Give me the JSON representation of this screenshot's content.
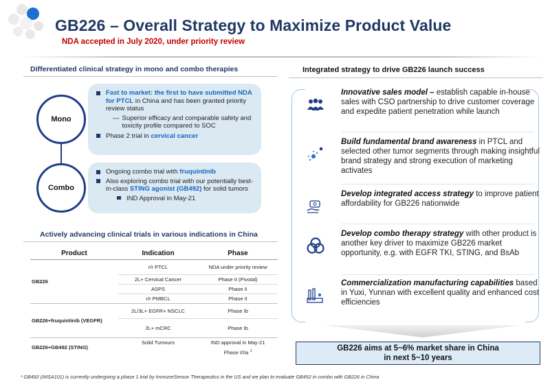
{
  "header": {
    "title": "GB226 – Overall Strategy to Maximize Product Value",
    "subtitle": "NDA accepted in July 2020, under priority review"
  },
  "left": {
    "heading": "Differentiated clinical strategy in mono and combo therapies",
    "mono": {
      "label": "Mono",
      "b1_pre": "Fast to market: the first to have submitted NDA for PTCL",
      "b1_post": " in China and has been granted priority review status",
      "b1_dash": "Superior efficacy and comparable safety and toxicity profile compared to SOC",
      "b2_pre": "Phase 2 trial in ",
      "b2_hl": "cervical cancer"
    },
    "combo": {
      "label": "Combo",
      "b1_pre": "Ongoing combo trial with ",
      "b1_hl": "fruquintinib",
      "b2_pre": "Also exploring combo trial with our potentially best-in-class ",
      "b2_hl": "STING agonist (GB492)",
      "b2_post": " for solid tumors",
      "b2_sub": "IND Approval in May-21"
    },
    "trials_heading": "Actively advancing clinical trials in various indications in China",
    "table": {
      "headers": [
        "Product",
        "Indication",
        "Phase"
      ],
      "groups": [
        {
          "product": "GB226",
          "rows": [
            {
              "indication": "r/r PTCL",
              "phase": "NDA under priority review"
            },
            {
              "indication": "2L+ Cervical Cancer",
              "phase": "Phase II (Pivotal)"
            },
            {
              "indication": "ASPS",
              "phase": "Phase II"
            },
            {
              "indication": "r/r PMBCL",
              "phase": "Phase II"
            }
          ]
        },
        {
          "product": "GB226+fruquintinib (VEGFR)",
          "rows": [
            {
              "indication": "2L/3L+ EGFR+ NSCLC",
              "phase": "Phase Ib"
            },
            {
              "indication": "2L+ mCRC",
              "phase": "Phase Ib"
            }
          ]
        },
        {
          "product": "GB226+GB492 (STING)",
          "rows": [
            {
              "indication": "Solid Tumours",
              "phase": "IND approval in May-21"
            },
            {
              "indication": "",
              "phase": "Phase I/IIa"
            }
          ]
        }
      ],
      "footnote_marker": "1"
    },
    "footnote": "¹ GB492 (IMSA101) is currently undergoing a phase 1 trial by ImmuneSensor Therapeutics in the US and we plan to evaluate GB492 in combo with GB226 in China"
  },
  "right": {
    "heading": "Integrated strategy to drive GB226 launch success",
    "items": [
      {
        "icon": "sales-team-icon",
        "bold": "Innovative sales model –",
        "text": " establish capable in-house sales with CSO partnership to drive customer coverage and expedite patient penetration while launch"
      },
      {
        "icon": "brand-awareness-icon",
        "bold": "Build fundamental brand awareness",
        "text": " in PTCL and selected other tumor segments through making insightful brand strategy and strong execution of marketing activates"
      },
      {
        "icon": "access-icon",
        "bold": "Develop integrated access strategy",
        "text": " to improve patient affordability for GB226 nationwide"
      },
      {
        "icon": "combo-therapy-icon",
        "bold": "Develop combo therapy strategy",
        "text": " with other product is another key driver to maximize GB226 market opportunity, e.g. with EGFR TKI, STING, and BsAb"
      },
      {
        "icon": "manufacturing-icon",
        "bold": "Commercialization manufacturing capabilities",
        "text": " based in Yuxi, Yunnan with excellent quality and enhanced cost efficiencies"
      }
    ],
    "outcome_line1": "GB226 aims at 5~6% market share in China",
    "outcome_line2": "in next 5~10 years"
  }
}
